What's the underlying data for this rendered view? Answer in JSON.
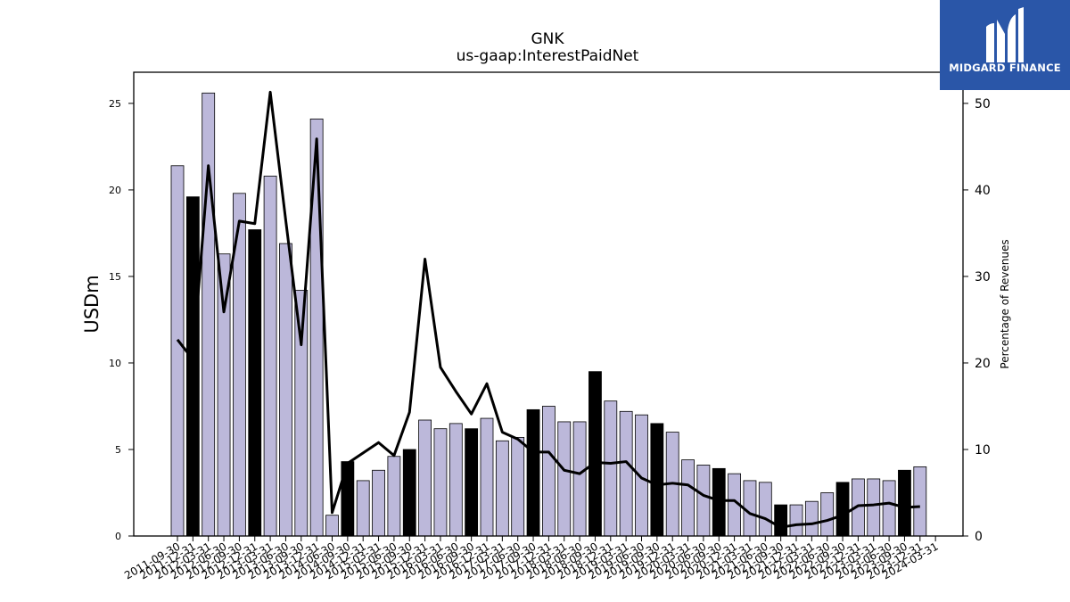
{
  "chart_data": {
    "type": "bar",
    "title": "GNK",
    "subtitle": "us-gaap:InterestPaidNet",
    "ylabel": "USDm",
    "y2label": "Percentage of Revenues",
    "ylim": [
      0,
      26.8
    ],
    "y2lim": [
      0,
      53.6
    ],
    "yticks": [
      0,
      5,
      10,
      15,
      20,
      25
    ],
    "y2ticks": [
      0,
      10,
      20,
      30,
      40,
      50
    ],
    "categories": [
      "2011-09-30",
      "2011-12-31",
      "2012-03-31",
      "2012-06-30",
      "2012-09-30",
      "2012-12-31",
      "2013-03-31",
      "2013-06-30",
      "2013-09-30",
      "2013-12-31",
      "2014-06-30",
      "2014-09-30",
      "2014-12-31",
      "2015-03-31",
      "2015-06-30",
      "2015-09-30",
      "2015-12-31",
      "2016-03-31",
      "2016-06-30",
      "2016-09-30",
      "2016-12-31",
      "2017-03-31",
      "2017-06-30",
      "2017-09-30",
      "2017-12-31",
      "2018-03-31",
      "2018-06-30",
      "2018-09-30",
      "2018-12-31",
      "2019-03-31",
      "2019-06-30",
      "2019-09-30",
      "2019-12-31",
      "2020-03-31",
      "2020-06-30",
      "2020-09-30",
      "2020-12-31",
      "2021-03-31",
      "2021-06-30",
      "2021-09-30",
      "2021-12-31",
      "2022-03-31",
      "2022-06-30",
      "2022-09-30",
      "2022-12-31",
      "2023-03-31",
      "2023-06-30",
      "2023-09-30",
      "2023-12-31",
      "2024-03-31"
    ],
    "values": [
      21.4,
      19.6,
      25.6,
      16.3,
      19.8,
      17.7,
      20.8,
      16.9,
      14.2,
      24.1,
      1.2,
      4.3,
      3.2,
      3.8,
      4.6,
      5.0,
      6.7,
      6.2,
      6.5,
      6.2,
      6.8,
      5.5,
      5.7,
      7.3,
      7.5,
      6.6,
      6.6,
      9.5,
      7.8,
      7.2,
      7.0,
      6.5,
      6.0,
      4.4,
      4.1,
      3.9,
      3.6,
      3.2,
      3.1,
      1.8,
      1.8,
      2.0,
      2.5,
      3.1,
      3.3,
      3.3,
      3.2,
      3.8,
      4.0,
      null
    ],
    "highlight": [
      false,
      true,
      false,
      false,
      false,
      true,
      false,
      false,
      false,
      false,
      false,
      true,
      false,
      false,
      false,
      true,
      false,
      false,
      false,
      true,
      false,
      false,
      false,
      true,
      false,
      false,
      false,
      true,
      false,
      false,
      false,
      true,
      false,
      false,
      false,
      true,
      false,
      false,
      false,
      true,
      false,
      false,
      false,
      true,
      false,
      false,
      false,
      true,
      false,
      false
    ],
    "line_values": [
      22.7,
      20.4,
      42.8,
      25.9,
      36.4,
      36.1,
      51.3,
      36.5,
      22.1,
      45.9,
      2.7,
      8.4,
      9.6,
      10.8,
      9.3,
      14.3,
      32.0,
      19.5,
      16.7,
      14.1,
      17.6,
      12.0,
      11.2,
      9.7,
      9.7,
      7.6,
      7.2,
      8.5,
      8.4,
      8.6,
      6.7,
      5.9,
      6.1,
      5.9,
      4.7,
      4.1,
      4.1,
      2.6,
      2.0,
      1.0,
      1.3,
      1.4,
      1.8,
      2.4,
      3.5,
      3.6,
      3.8,
      3.3,
      3.4,
      null
    ],
    "bar_color": "#bcb8da",
    "highlight_color": "#000000",
    "line_color": "#000000",
    "grid": false,
    "legend": "none"
  },
  "logo": {
    "text": "MIDGARD FINANCE",
    "bg": "#2a56a8"
  }
}
